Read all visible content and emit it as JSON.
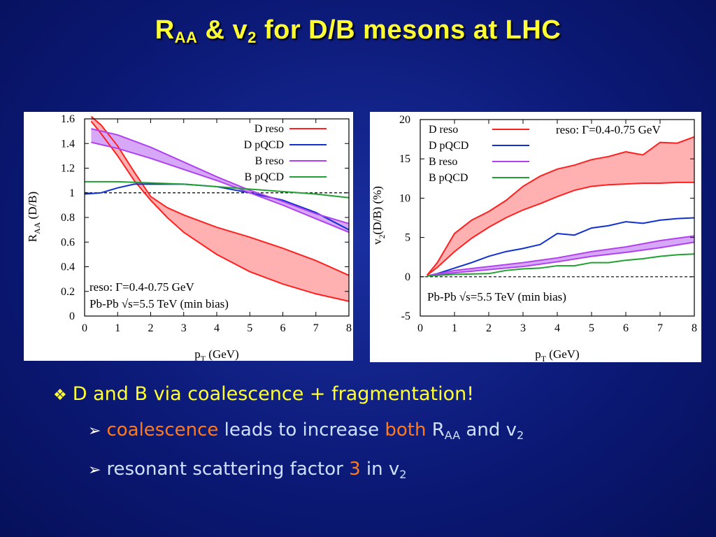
{
  "title": {
    "main": "R",
    "sub1": "AA",
    "mid": " & v",
    "sub2": "2",
    "rest": " for D/B mesons at LHC"
  },
  "bullets": {
    "b1": {
      "text": "D and B via coalescence + fragmentation!"
    },
    "b2": {
      "w1": "coalescence",
      "w2": " leads to increase ",
      "w3": "both",
      "w4": " R",
      "sub1": "AA",
      "w5": " and v",
      "sub2": "2"
    },
    "b3": {
      "w1": "resonant scattering factor ",
      "w2": "3",
      "w3": " in v",
      "sub": "2"
    }
  },
  "chart_data": [
    {
      "type": "line",
      "ylabel_main": "R",
      "ylabel_sub": "AA",
      "ylabel_rest": " (D/B)",
      "xlabel_main": "p",
      "xlabel_sub": "T",
      "xlabel_rest": " (GeV)",
      "xlim": [
        0,
        8
      ],
      "ylim": [
        0,
        1.6
      ],
      "xticks": [
        0,
        1,
        2,
        3,
        4,
        5,
        6,
        7,
        8
      ],
      "yticks": [
        0,
        0.2,
        0.4,
        0.6,
        0.8,
        1,
        1.2,
        1.4,
        1.6
      ],
      "yticklabels": [
        "0",
        "0.2",
        "0.4",
        "0.6",
        "0.8",
        "1",
        "1.2",
        "1.4",
        "1.6"
      ],
      "reference_line": 1,
      "legend": [
        "D reso",
        "D pQCD",
        "B reso",
        "B pQCD"
      ],
      "legend_position": "top-right",
      "annotations": [
        "reso: Γ=0.4-0.75 GeV",
        "Pb-Pb √s=5.5 TeV (min bias)"
      ],
      "series": [
        {
          "name": "D reso",
          "color": "#ff2020",
          "band": true,
          "x": [
            0.2,
            0.5,
            1,
            1.5,
            2,
            2.5,
            3,
            4,
            5,
            6,
            7,
            8
          ],
          "upper": [
            1.62,
            1.55,
            1.38,
            1.17,
            0.97,
            0.88,
            0.82,
            0.72,
            0.64,
            0.55,
            0.45,
            0.33
          ],
          "lower": [
            1.58,
            1.48,
            1.3,
            1.1,
            0.94,
            0.8,
            0.68,
            0.5,
            0.36,
            0.26,
            0.18,
            0.12
          ]
        },
        {
          "name": "D pQCD",
          "color": "#1030d0",
          "x": [
            0,
            0.5,
            1,
            1.5,
            2,
            3,
            4,
            5,
            6,
            7,
            8
          ],
          "y": [
            0.99,
            1.0,
            1.04,
            1.07,
            1.07,
            1.07,
            1.05,
            1.0,
            0.94,
            0.84,
            0.7
          ]
        },
        {
          "name": "B reso",
          "color": "#b040f0",
          "band": true,
          "x": [
            0.2,
            1,
            2,
            3,
            4,
            5,
            6,
            7,
            8
          ],
          "upper": [
            1.52,
            1.47,
            1.37,
            1.25,
            1.13,
            1.02,
            0.93,
            0.83,
            0.75
          ],
          "lower": [
            1.41,
            1.36,
            1.28,
            1.19,
            1.1,
            1.0,
            0.9,
            0.79,
            0.68
          ]
        },
        {
          "name": "B pQCD",
          "color": "#20a030",
          "x": [
            0,
            1,
            2,
            3,
            4,
            5,
            6,
            7,
            8
          ],
          "y": [
            1.09,
            1.09,
            1.08,
            1.07,
            1.05,
            1.03,
            1.01,
            0.99,
            0.96
          ]
        }
      ]
    },
    {
      "type": "line",
      "ylabel_main": "v",
      "ylabel_sub": "2",
      "ylabel_rest": "(D/B) (%)",
      "xlabel_main": "p",
      "xlabel_sub": "T",
      "xlabel_rest": " (GeV)",
      "xlim": [
        0,
        8
      ],
      "ylim": [
        -5,
        20
      ],
      "xticks": [
        0,
        1,
        2,
        3,
        4,
        5,
        6,
        7,
        8
      ],
      "yticks": [
        -5,
        0,
        5,
        10,
        15,
        20
      ],
      "yticklabels": [
        "-5",
        "0",
        "5",
        "10",
        "15",
        "20"
      ],
      "reference_line": 0,
      "legend": [
        "D reso",
        "D pQCD",
        "B reso",
        "B pQCD"
      ],
      "legend_position": "top-left",
      "annotations": [
        "reso: Γ=0.4-0.75 GeV",
        "Pb-Pb √s=5.5 TeV (min bias)"
      ],
      "series": [
        {
          "name": "D reso",
          "color": "#ff2020",
          "band": true,
          "x": [
            0.2,
            0.5,
            1,
            1.5,
            2,
            2.5,
            3,
            3.5,
            4,
            4.5,
            5,
            5.5,
            6,
            6.5,
            7,
            7.5,
            8
          ],
          "upper": [
            0.2,
            1.8,
            5.5,
            7.2,
            8.3,
            9.7,
            11.5,
            12.8,
            13.7,
            14.2,
            14.9,
            15.3,
            15.9,
            15.5,
            17.1,
            17.0,
            17.8
          ],
          "lower": [
            0.2,
            1.2,
            3.2,
            4.9,
            6.3,
            7.5,
            8.5,
            9.3,
            10.2,
            11.0,
            11.5,
            11.7,
            11.8,
            11.9,
            11.9,
            12.0,
            12.0
          ]
        },
        {
          "name": "D pQCD",
          "color": "#1030d0",
          "x": [
            0.2,
            0.5,
            1,
            1.5,
            2,
            2.5,
            3,
            3.5,
            4,
            4.5,
            5,
            5.5,
            6,
            6.5,
            7,
            7.5,
            8
          ],
          "y": [
            0.1,
            0.4,
            1.1,
            1.8,
            2.6,
            3.2,
            3.6,
            4.1,
            5.5,
            5.3,
            6.2,
            6.5,
            7.0,
            6.8,
            7.2,
            7.4,
            7.5
          ]
        },
        {
          "name": "B reso",
          "color": "#b040f0",
          "band": true,
          "x": [
            0.2,
            1,
            2,
            3,
            4,
            5,
            6,
            7,
            8
          ],
          "upper": [
            0.1,
            0.8,
            1.3,
            1.8,
            2.4,
            3.2,
            3.8,
            4.6,
            5.2
          ],
          "lower": [
            0.1,
            0.5,
            0.9,
            1.3,
            1.9,
            2.6,
            3.1,
            3.7,
            4.4
          ]
        },
        {
          "name": "B pQCD",
          "color": "#20a030",
          "x": [
            0.2,
            1,
            2,
            2.5,
            3,
            3.5,
            4,
            4.5,
            5,
            5.5,
            6,
            6.5,
            7,
            7.5,
            8
          ],
          "y": [
            0.1,
            0.3,
            0.4,
            0.8,
            1.0,
            1.1,
            1.4,
            1.4,
            1.8,
            1.8,
            2.1,
            2.3,
            2.6,
            2.8,
            2.9
          ]
        }
      ]
    }
  ]
}
